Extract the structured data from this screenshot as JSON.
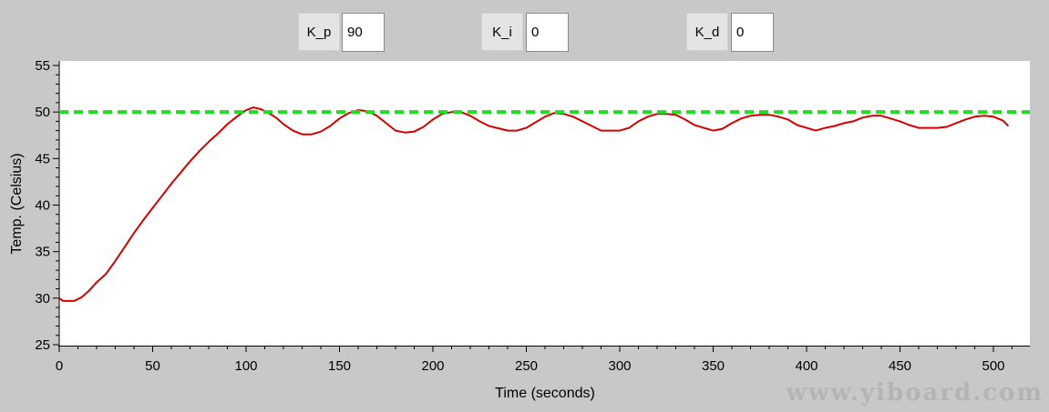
{
  "controls": {
    "kp": {
      "label": "K_p",
      "value": "90"
    },
    "ki": {
      "label": "K_i",
      "value": "0"
    },
    "kd": {
      "label": "K_d",
      "value": "0"
    }
  },
  "watermark": "www.yiboard.com",
  "colors": {
    "temperature_line": "#d40000",
    "setpoint_line": "#22dd22",
    "plot_background": "#ffffff",
    "window_background": "#c8c8c8"
  },
  "chart_data": {
    "type": "line",
    "xlabel": "Time (seconds)",
    "ylabel": "Temp. (Celsius)",
    "xlim": [
      0,
      520
    ],
    "ylim": [
      25,
      55
    ],
    "x_ticks": [
      0,
      50,
      100,
      150,
      200,
      250,
      300,
      350,
      400,
      450,
      500
    ],
    "y_ticks": [
      25,
      30,
      35,
      40,
      45,
      50,
      55
    ],
    "grid": false,
    "series": [
      {
        "style": "solid",
        "color": "#d40000",
        "points": [
          [
            0,
            30
          ],
          [
            2,
            29.7
          ],
          [
            8,
            29.7
          ],
          [
            12,
            30.1
          ],
          [
            16,
            30.8
          ],
          [
            20,
            31.7
          ],
          [
            25,
            32.6
          ],
          [
            30,
            34
          ],
          [
            35,
            35.5
          ],
          [
            40,
            37
          ],
          [
            45,
            38.4
          ],
          [
            50,
            39.7
          ],
          [
            55,
            41
          ],
          [
            60,
            42.3
          ],
          [
            65,
            43.5
          ],
          [
            70,
            44.7
          ],
          [
            75,
            45.8
          ],
          [
            80,
            46.8
          ],
          [
            85,
            47.7
          ],
          [
            90,
            48.7
          ],
          [
            95,
            49.5
          ],
          [
            100,
            50.2
          ],
          [
            104,
            50.5
          ],
          [
            108,
            50.3
          ],
          [
            112,
            49.9
          ],
          [
            116,
            49.4
          ],
          [
            120,
            48.7
          ],
          [
            125,
            48
          ],
          [
            130,
            47.6
          ],
          [
            135,
            47.6
          ],
          [
            140,
            47.9
          ],
          [
            145,
            48.5
          ],
          [
            150,
            49.3
          ],
          [
            155,
            49.9
          ],
          [
            160,
            50.2
          ],
          [
            165,
            50.1
          ],
          [
            170,
            49.6
          ],
          [
            175,
            48.8
          ],
          [
            180,
            48
          ],
          [
            185,
            47.8
          ],
          [
            190,
            47.9
          ],
          [
            195,
            48.4
          ],
          [
            200,
            49.2
          ],
          [
            205,
            49.8
          ],
          [
            210,
            50
          ],
          [
            215,
            50
          ],
          [
            220,
            49.6
          ],
          [
            225,
            49
          ],
          [
            230,
            48.5
          ],
          [
            240,
            48
          ],
          [
            245,
            48
          ],
          [
            250,
            48.3
          ],
          [
            255,
            48.9
          ],
          [
            260,
            49.5
          ],
          [
            265,
            49.9
          ],
          [
            270,
            49.8
          ],
          [
            275,
            49.5
          ],
          [
            280,
            49
          ],
          [
            285,
            48.5
          ],
          [
            290,
            48
          ],
          [
            300,
            48
          ],
          [
            305,
            48.3
          ],
          [
            310,
            49
          ],
          [
            315,
            49.5
          ],
          [
            320,
            49.8
          ],
          [
            325,
            49.8
          ],
          [
            330,
            49.7
          ],
          [
            335,
            49.2
          ],
          [
            340,
            48.6
          ],
          [
            345,
            48.3
          ],
          [
            350,
            48
          ],
          [
            355,
            48.2
          ],
          [
            360,
            48.8
          ],
          [
            365,
            49.3
          ],
          [
            370,
            49.6
          ],
          [
            375,
            49.7
          ],
          [
            380,
            49.7
          ],
          [
            385,
            49.5
          ],
          [
            390,
            49.2
          ],
          [
            395,
            48.6
          ],
          [
            400,
            48.3
          ],
          [
            405,
            48
          ],
          [
            410,
            48.3
          ],
          [
            415,
            48.5
          ],
          [
            420,
            48.8
          ],
          [
            425,
            49
          ],
          [
            430,
            49.4
          ],
          [
            435,
            49.6
          ],
          [
            440,
            49.6
          ],
          [
            445,
            49.3
          ],
          [
            450,
            49
          ],
          [
            455,
            48.6
          ],
          [
            460,
            48.3
          ],
          [
            470,
            48.3
          ],
          [
            475,
            48.4
          ],
          [
            480,
            48.8
          ],
          [
            485,
            49.2
          ],
          [
            490,
            49.5
          ],
          [
            495,
            49.6
          ],
          [
            500,
            49.5
          ],
          [
            505,
            49.1
          ],
          [
            508,
            48.5
          ]
        ]
      },
      {
        "style": "dashed",
        "color": "#22dd22",
        "points": [
          [
            0,
            50
          ],
          [
            520,
            50
          ]
        ]
      }
    ]
  }
}
